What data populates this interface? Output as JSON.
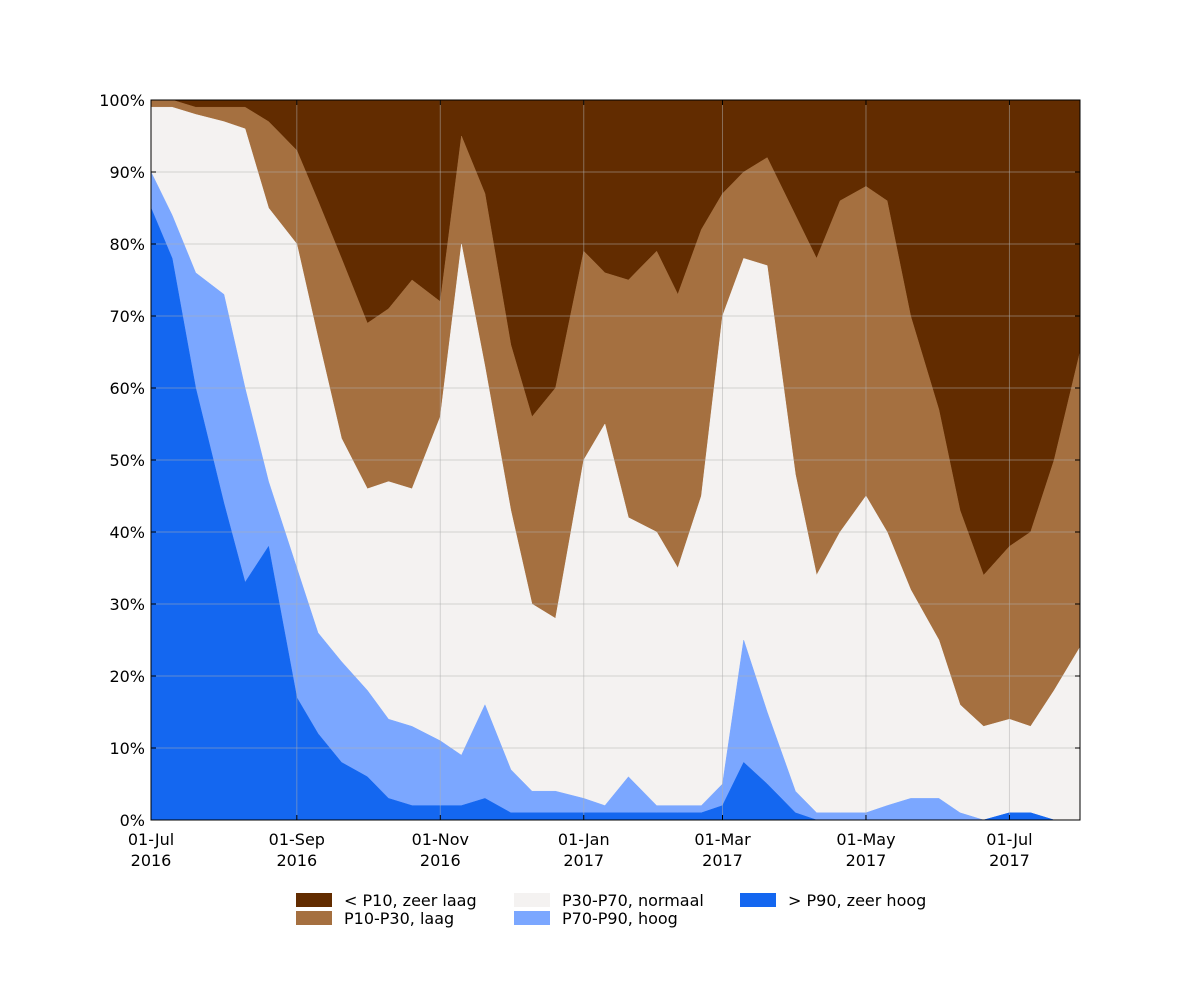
{
  "chart_data": {
    "type": "area",
    "stacked": true,
    "percent": true,
    "title": "",
    "xlabel": "",
    "ylabel": "",
    "ylim": [
      0,
      100
    ],
    "x_range": [
      "2016-07-01",
      "2017-07-31"
    ],
    "y_ticks": [
      "0%",
      "10%",
      "20%",
      "30%",
      "40%",
      "50%",
      "60%",
      "70%",
      "80%",
      "90%",
      "100%"
    ],
    "x_ticks": [
      {
        "date": "2016-07-01",
        "line1": "01-Jul",
        "line2": "2016"
      },
      {
        "date": "2016-09-01",
        "line1": "01-Sep",
        "line2": "2016"
      },
      {
        "date": "2016-11-01",
        "line1": "01-Nov",
        "line2": "2016"
      },
      {
        "date": "2017-01-01",
        "line1": "01-Jan",
        "line2": "2017"
      },
      {
        "date": "2017-03-01",
        "line1": "01-Mar",
        "line2": "2017"
      },
      {
        "date": "2017-05-01",
        "line1": "01-May",
        "line2": "2017"
      },
      {
        "date": "2017-07-01",
        "line1": "01-Jul",
        "line2": "2017"
      }
    ],
    "grid": true,
    "legend_position": "bottom",
    "boundaries": {
      "x": [
        "2016-07-01",
        "2016-07-10",
        "2016-07-20",
        "2016-08-01",
        "2016-08-10",
        "2016-08-20",
        "2016-09-01",
        "2016-09-10",
        "2016-09-20",
        "2016-10-01",
        "2016-10-10",
        "2016-10-20",
        "2016-11-01",
        "2016-11-10",
        "2016-11-20",
        "2016-12-01",
        "2016-12-10",
        "2016-12-20",
        "2017-01-01",
        "2017-01-10",
        "2017-01-20",
        "2017-02-01",
        "2017-02-10",
        "2017-02-20",
        "2017-03-01",
        "2017-03-10",
        "2017-03-20",
        "2017-04-01",
        "2017-04-10",
        "2017-04-20",
        "2017-05-01",
        "2017-05-10",
        "2017-05-20",
        "2017-06-01",
        "2017-06-10",
        "2017-06-20",
        "2017-07-01",
        "2017-07-10",
        "2017-07-20",
        "2017-07-31"
      ],
      "very_high_top": [
        85,
        78,
        60,
        44,
        33,
        38,
        17,
        12,
        8,
        6,
        3,
        2,
        2,
        2,
        3,
        1,
        1,
        1,
        1,
        1,
        1,
        1,
        1,
        1,
        2,
        8,
        5,
        1,
        0,
        0,
        0,
        0,
        0,
        0,
        0,
        0,
        1,
        1,
        0,
        0
      ],
      "high_top": [
        90,
        84,
        76,
        73,
        60,
        47,
        35,
        26,
        22,
        18,
        14,
        13,
        11,
        9,
        16,
        7,
        4,
        4,
        3,
        2,
        6,
        2,
        2,
        2,
        5,
        25,
        15,
        4,
        1,
        1,
        1,
        2,
        3,
        3,
        1,
        0,
        1,
        1,
        0,
        0
      ],
      "normal_top": [
        99,
        99,
        98,
        97,
        96,
        85,
        80,
        67,
        53,
        46,
        47,
        46,
        56,
        80,
        63,
        43,
        30,
        28,
        50,
        55,
        42,
        40,
        35,
        45,
        70,
        78,
        77,
        48,
        34,
        40,
        45,
        40,
        32,
        25,
        16,
        13,
        14,
        13,
        18,
        24
      ],
      "low_top": [
        100,
        100,
        99,
        99,
        99,
        97,
        93,
        86,
        78,
        69,
        71,
        75,
        72,
        95,
        87,
        66,
        56,
        60,
        79,
        76,
        75,
        79,
        73,
        82,
        87,
        90,
        92,
        84,
        78,
        86,
        88,
        86,
        70,
        57,
        43,
        34,
        38,
        40,
        50,
        65
      ]
    },
    "series": [
      {
        "name": "< P10, zeer laag",
        "color": "#622c00"
      },
      {
        "name": "P10-P30, laag",
        "color": "#a57040"
      },
      {
        "name": "P30-P70, normaal",
        "color": "#f4f2f1"
      },
      {
        "name": "P70-P90, hoog",
        "color": "#7ba7ff"
      },
      {
        "name": "> P90, zeer hoog",
        "color": "#1467f0"
      }
    ]
  }
}
